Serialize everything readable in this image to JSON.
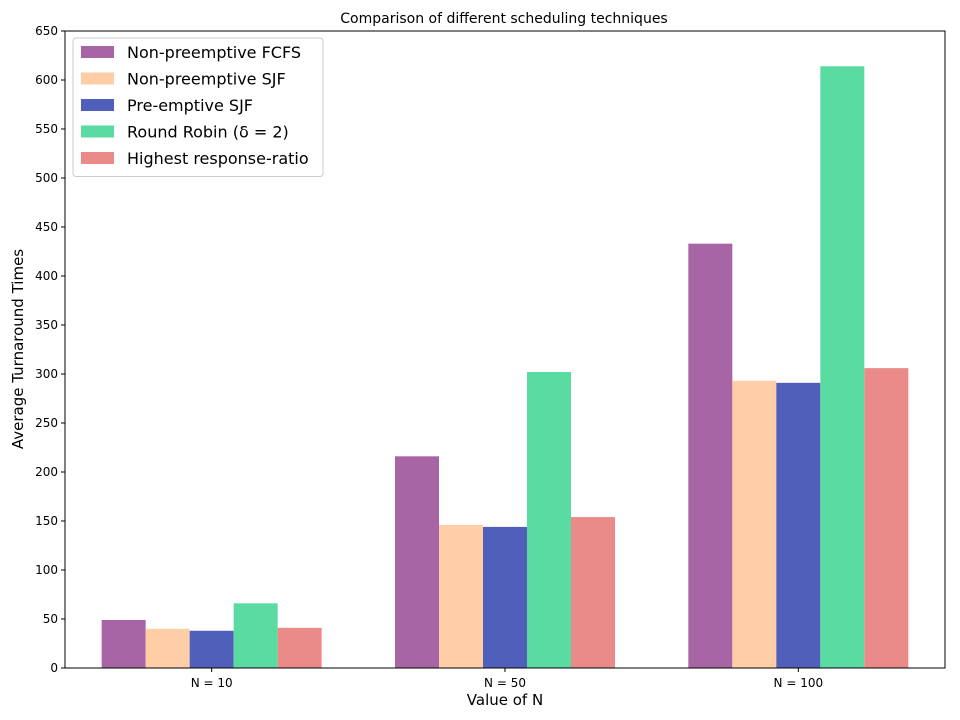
{
  "chart_data": {
    "type": "bar",
    "title": "Comparison of different scheduling techniques",
    "xlabel": "Value of N",
    "ylabel": "Average Turnaround Times",
    "categories": [
      "N = 10",
      "N = 50",
      "N = 100"
    ],
    "ylim": [
      0,
      650
    ],
    "yticks": [
      0,
      50,
      100,
      150,
      200,
      250,
      300,
      350,
      400,
      450,
      500,
      550,
      600,
      650
    ],
    "grid": false,
    "legend_position": "top-left",
    "series": [
      {
        "name": "Non-preemptive FCFS",
        "color": "#a865a5",
        "values": [
          49,
          216,
          433
        ]
      },
      {
        "name": "Non-preemptive SJF",
        "color": "#ffcda6",
        "values": [
          40,
          146,
          293
        ]
      },
      {
        "name": "Pre-emptive SJF",
        "color": "#505fba",
        "values": [
          38,
          144,
          291
        ]
      },
      {
        "name": "Round Robin (δ = 2)",
        "color": "#59dba2",
        "values": [
          66,
          302,
          614
        ]
      },
      {
        "name": "Highest response-ratio",
        "color": "#ea8b8a",
        "values": [
          41,
          154,
          306
        ]
      }
    ]
  }
}
